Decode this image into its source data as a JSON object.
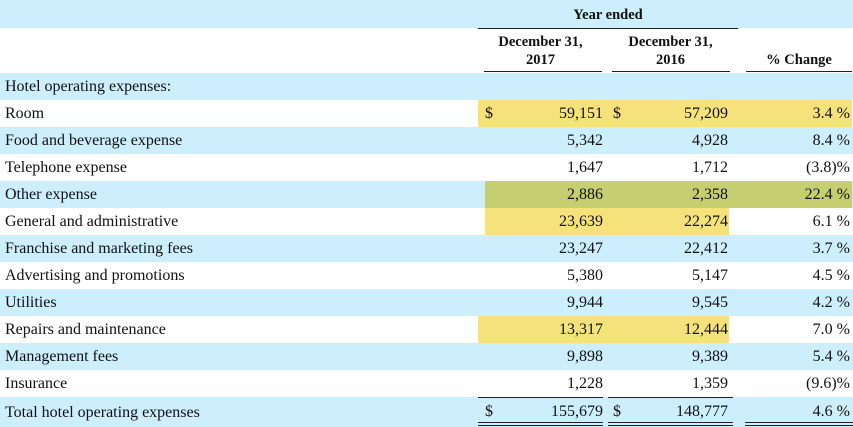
{
  "header": {
    "group_title": "Year ended",
    "columns": [
      "December 31, 2017",
      "December 31, 2016",
      "% Change"
    ],
    "col_2017_line1": "December 31,",
    "col_2017_line2": "2017",
    "col_2016_line1": "December 31,",
    "col_2016_line2": "2016",
    "col_change": "% Change"
  },
  "section_title": "Hotel operating expenses:",
  "currency_symbol": "$",
  "rows": [
    {
      "label": "Room",
      "v2017": "59,151",
      "v2016": "57,209",
      "change": "3.4 %",
      "dollar": true
    },
    {
      "label": "Food and beverage expense",
      "v2017": "5,342",
      "v2016": "4,928",
      "change": "8.4 %"
    },
    {
      "label": "Telephone expense",
      "v2017": "1,647",
      "v2016": "1,712",
      "change": "(3.8)%"
    },
    {
      "label": "Other expense",
      "v2017": "2,886",
      "v2016": "2,358",
      "change": "22.4 %"
    },
    {
      "label": "General and administrative",
      "v2017": "23,639",
      "v2016": "22,274",
      "change": "6.1 %"
    },
    {
      "label": "Franchise and marketing fees",
      "v2017": "23,247",
      "v2016": "22,412",
      "change": "3.7 %"
    },
    {
      "label": "Advertising and promotions",
      "v2017": "5,380",
      "v2016": "5,147",
      "change": "4.5 %"
    },
    {
      "label": "Utilities",
      "v2017": "9,944",
      "v2016": "9,545",
      "change": "4.2 %"
    },
    {
      "label": "Repairs and maintenance",
      "v2017": "13,317",
      "v2016": "12,444",
      "change": "7.0 %"
    },
    {
      "label": "Management fees",
      "v2017": "9,898",
      "v2016": "9,389",
      "change": "5.4 %"
    },
    {
      "label": "Insurance",
      "v2017": "1,228",
      "v2016": "1,359",
      "change": "(9.6)%"
    }
  ],
  "total": {
    "label": "Total hotel operating expenses",
    "v2017": "155,679",
    "v2016": "148,777",
    "change": "4.6 %"
  },
  "colors": {
    "row_band": "#cdeefd",
    "highlight_yellow": "#f6e27a",
    "highlight_green": "#c6cf6f"
  }
}
